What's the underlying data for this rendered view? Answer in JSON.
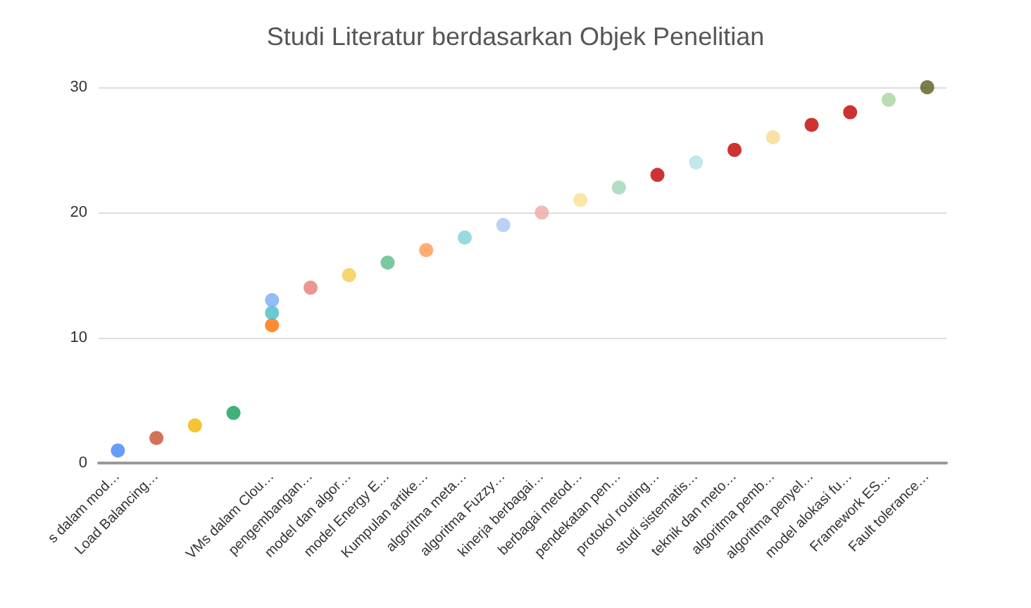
{
  "chart_data": {
    "type": "scatter",
    "title": "Studi Literatur berdasarkan Objek Penelitian",
    "categories": [
      "s dalam mod…",
      "Load Balancing…",
      null,
      null,
      "VMs dalam Clou…",
      "pengembangan…",
      "model dan algor…",
      "model Energy E…",
      "Kumpulan artike…",
      "algoritma meta…",
      "algoritma Fuzzy…",
      "kinerja berbagai…",
      "berbagai metod…",
      "pendekatan pen…",
      "protokol routing…",
      "studi sistematis…",
      "teknik dan meto…",
      "algoritma pemb…",
      "algoritma penyel…",
      "model alokasi fu…",
      "Framework ES…",
      "Fault tolerance…"
    ],
    "series": [
      {
        "values": [
          1,
          2,
          3,
          4,
          11,
          14,
          15,
          16,
          17,
          18,
          19,
          20,
          21,
          22,
          23,
          24,
          25,
          26,
          27,
          28,
          29,
          30
        ],
        "colors": [
          "#4285f4",
          "#c5512f",
          "#f4b400",
          "#0f9d58",
          "#ff6d01",
          "#e67c73",
          "#f7cb4d",
          "#57bb8a",
          "#ff994d",
          "#7fd1d7",
          "#a9c6f5",
          "#efa9a4",
          "#f9e08e",
          "#9fd6b7",
          "#c00000",
          "#b3e2e6",
          "#c00000",
          "#f9d88e",
          "#c00000",
          "#c00000",
          "#a8d5a0",
          "#5c5c1e"
        ]
      },
      {
        "values": [
          null,
          null,
          null,
          null,
          12,
          null,
          null,
          null,
          null,
          null,
          null,
          null,
          null,
          null,
          null,
          null,
          null,
          null,
          null,
          null,
          null,
          null
        ],
        "color": "#46bdc6"
      },
      {
        "values": [
          null,
          null,
          null,
          null,
          13,
          null,
          null,
          null,
          null,
          null,
          null,
          null,
          null,
          null,
          null,
          null,
          null,
          null,
          null,
          null,
          null,
          null
        ],
        "color": "#7baaf7"
      }
    ],
    "ylim": [
      0,
      30
    ],
    "yticks": [
      0,
      10,
      20,
      30
    ],
    "grid": "y",
    "marker": "circle"
  }
}
